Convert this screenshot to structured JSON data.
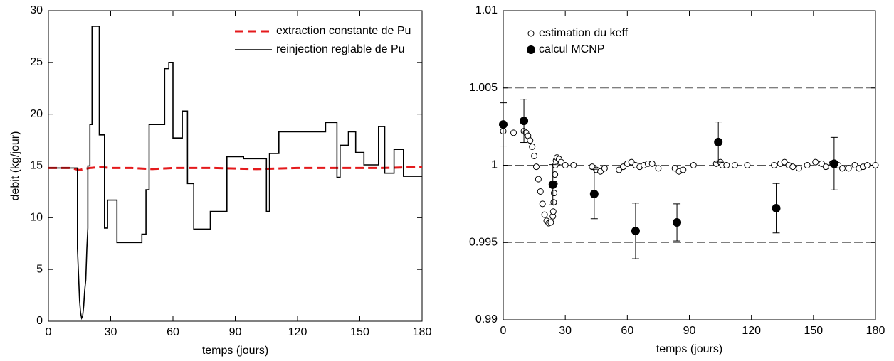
{
  "chart_data": [
    {
      "type": "line",
      "ylabel": "debit (kg/jour)",
      "xlabel": "temps (jours)",
      "xlim": [
        0,
        180
      ],
      "xticks": [
        0,
        30,
        60,
        90,
        120,
        150,
        180
      ],
      "ylim": [
        0,
        30
      ],
      "yticks": [
        0,
        5,
        10,
        15,
        20,
        25,
        30
      ],
      "legend": "upper right",
      "series": [
        {
          "name": "extraction constante de Pu",
          "color": "#e41a1c",
          "dashed": true,
          "x": [
            0,
            10,
            13,
            15,
            17,
            20,
            25,
            30,
            40,
            50,
            60,
            80,
            100,
            120,
            140,
            160,
            180
          ],
          "values": [
            14.8,
            14.8,
            14.7,
            14.6,
            14.7,
            14.8,
            14.9,
            14.8,
            14.8,
            14.7,
            14.8,
            14.8,
            14.7,
            14.8,
            14.8,
            14.8,
            14.9
          ]
        },
        {
          "name": "reinjection reglable de Pu",
          "color": "#000000",
          "dashed": false,
          "x": [
            0,
            14,
            14,
            15,
            15.5,
            16,
            16.5,
            17,
            17.5,
            18,
            18.5,
            19,
            19,
            20,
            20,
            21,
            21,
            24.5,
            24.5,
            27,
            27,
            28.5,
            28.5,
            33,
            33,
            45,
            45,
            47,
            47,
            48.5,
            48.5,
            56,
            56,
            58,
            58,
            60,
            60,
            64.5,
            64.5,
            67,
            67,
            70,
            70,
            78,
            78,
            86,
            86,
            94,
            94,
            105,
            105,
            106.5,
            106.5,
            111,
            111,
            133.5,
            133.5,
            139,
            139,
            140.5,
            140.5,
            144.5,
            144.5,
            148,
            148,
            152,
            152,
            159,
            159,
            162,
            162,
            166.5,
            166.5,
            171,
            171,
            180
          ],
          "values": [
            14.8,
            14.8,
            7.0,
            2,
            0.8,
            0.3,
            0.5,
            1.5,
            3,
            4,
            7,
            9,
            15,
            15,
            19,
            19,
            28.5,
            28.5,
            18,
            18,
            9,
            9,
            11.7,
            11.7,
            7.6,
            7.6,
            8.4,
            8.4,
            12.7,
            12.7,
            19,
            19,
            24.4,
            24.4,
            25,
            25,
            17.7,
            17.7,
            20.3,
            20.3,
            13.3,
            13.3,
            8.9,
            8.9,
            10.6,
            10.6,
            15.9,
            15.9,
            15.7,
            15.7,
            10.6,
            10.6,
            16.2,
            16.2,
            18.3,
            18.3,
            19.2,
            19.2,
            13.9,
            13.9,
            17,
            17,
            18.3,
            18.3,
            16.3,
            16.3,
            15.1,
            15.1,
            18.8,
            18.8,
            14.3,
            14.3,
            16.6,
            16.6,
            14,
            14
          ]
        }
      ]
    },
    {
      "type": "scatter",
      "xlabel": "temps (jours)",
      "xlim": [
        0,
        180
      ],
      "xticks": [
        0,
        30,
        60,
        90,
        120,
        150,
        180
      ],
      "ylim": [
        0.99,
        1.01
      ],
      "yticks": [
        0.99,
        0.995,
        1,
        1.005,
        1.01
      ],
      "reference_lines": [
        0.995,
        1,
        1.005
      ],
      "legend": "upper left",
      "series": [
        {
          "name": "estimation du keff",
          "color": "#000000",
          "marker": "open",
          "x": [
            0,
            5,
            10,
            11,
            12,
            13,
            14,
            15,
            16,
            17,
            18,
            19,
            20,
            21,
            22,
            23,
            24,
            24.2,
            24.4,
            24.6,
            24.8,
            25,
            25.2,
            25.5,
            26,
            27,
            28,
            30,
            34,
            43,
            45,
            47,
            49,
            56,
            58,
            60,
            62,
            64,
            66,
            68,
            70,
            72,
            75,
            83,
            85,
            87,
            92,
            103,
            105,
            106,
            108,
            112,
            118,
            131,
            134,
            136,
            138,
            140,
            143,
            147,
            151,
            154,
            156,
            159,
            162,
            164,
            167,
            170,
            172,
            174,
            176,
            180
          ],
          "values": [
            1.0022,
            1.0021,
            1.0022,
            1.0021,
            1.0019,
            1.0016,
            1.0012,
            1.0006,
            0.9999,
            0.9991,
            0.9983,
            0.9975,
            0.9968,
            0.9964,
            0.99625,
            0.9963,
            0.9967,
            0.997,
            0.9976,
            0.9982,
            0.9988,
            0.9994,
            1.0,
            1.0003,
            1.0005,
            1.0004,
            1.0002,
            1.0,
            1.0,
            0.9999,
            0.9997,
            0.9996,
            0.9998,
            0.9997,
            0.9999,
            1.0001,
            1.0002,
            1.0,
            0.9999,
            1.0,
            1.0001,
            1.0001,
            0.9998,
            0.9998,
            0.9996,
            0.9997,
            1.0,
            1.0001,
            1.0002,
            1.0,
            1.0,
            1.0,
            1.0,
            1.0,
            1.0001,
            1.0002,
            1.0,
            0.9999,
            0.9998,
            1.0,
            1.0002,
            1.0001,
            0.9999,
            1.0001,
            1.0,
            0.9998,
            0.9998,
            1.0,
            0.9998,
            0.9999,
            1.0,
            1.0
          ]
        },
        {
          "name": "calcul MCNP",
          "color": "#000000",
          "marker": "filled",
          "x": [
            0,
            10,
            24,
            44,
            64,
            84,
            104,
            132,
            160
          ],
          "values": [
            1.00264,
            1.00287,
            0.99874,
            0.99814,
            0.99575,
            0.9963,
            1.0015,
            0.99722,
            1.0001
          ],
          "errors": [
            0.0014,
            0.0014,
            0.0013,
            0.0016,
            0.0018,
            0.0012,
            0.0013,
            0.0016,
            0.0017
          ]
        }
      ]
    }
  ]
}
